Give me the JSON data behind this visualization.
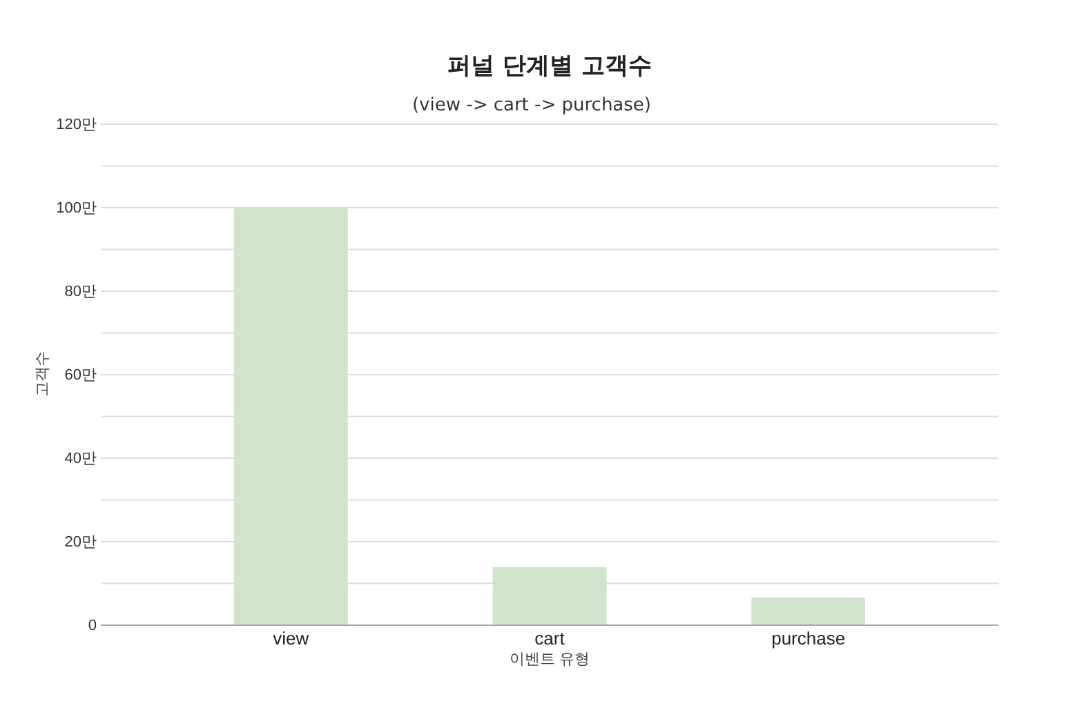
{
  "chart_data": {
    "type": "bar",
    "title": "퍼널 단계별 고객수",
    "subtitle": "(view -> cart -> purchase)",
    "xlabel": "이벤트 유형",
    "ylabel": "고객수",
    "categories": [
      "view",
      "cart",
      "purchase"
    ],
    "values": [
      100,
      13.9,
      6.6
    ],
    "color": "#cfe4cb",
    "ylim": [
      0,
      120
    ],
    "yticks": [
      0,
      {
        "value": 10,
        "label": null
      },
      {
        "value": 20,
        "label": "20만"
      },
      {
        "value": 30,
        "label": null
      },
      {
        "value": 40,
        "label": "40만"
      },
      {
        "value": 50,
        "label": null
      },
      {
        "value": 60,
        "label": "60만"
      },
      {
        "value": 70,
        "label": null
      },
      {
        "value": 80,
        "label": "80만"
      },
      {
        "value": 90,
        "label": null
      },
      {
        "value": 100,
        "label": "100만"
      },
      {
        "value": 110,
        "label": null
      },
      {
        "value": 120,
        "label": "120만"
      }
    ],
    "grid": true
  }
}
